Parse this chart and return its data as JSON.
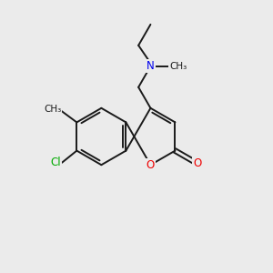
{
  "bg_color": "#ebebeb",
  "bond_color": "#1a1a1a",
  "atom_colors": {
    "N": "#0000ee",
    "O": "#ee0000",
    "Cl": "#00aa00",
    "C": "#1a1a1a"
  },
  "bond_lw": 1.4,
  "font_size_atom": 8.5,
  "font_size_small": 7.5
}
